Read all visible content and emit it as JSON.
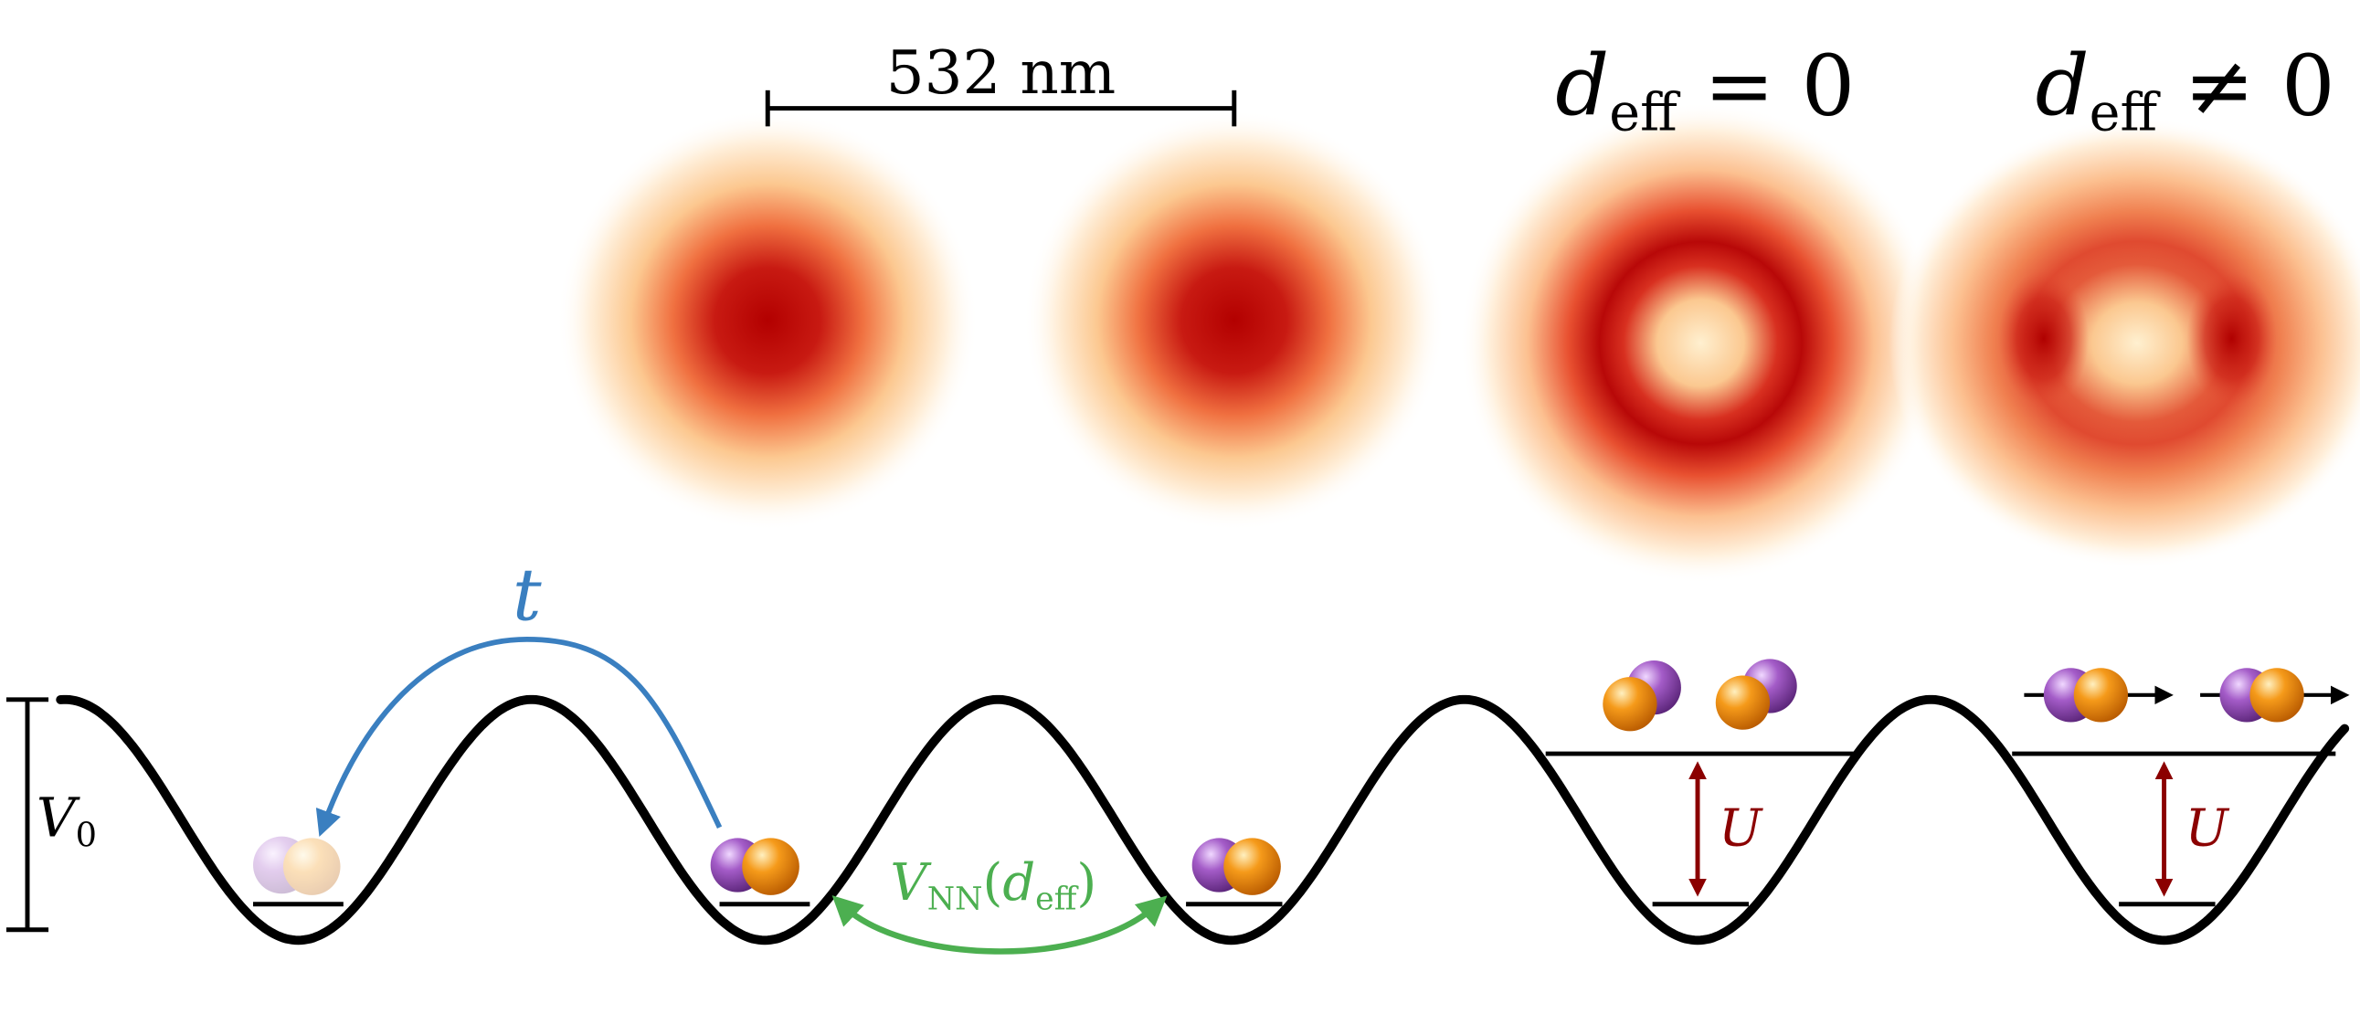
{
  "scale_bar": "532 nm",
  "panel_labels": [
    [
      {
        "text": "d",
        "italic": true
      },
      {
        "text": "eff",
        "sub": true
      },
      {
        "text": " = 0"
      }
    ],
    [
      {
        "text": "d",
        "italic": true
      },
      {
        "text": "eff",
        "sub": true
      },
      {
        "text": " ≠ 0"
      }
    ]
  ],
  "hopping": [
    {
      "text": "t",
      "italic": true
    }
  ],
  "barrier": [
    {
      "text": "V",
      "italic": true
    },
    {
      "text": "0",
      "sub": true
    }
  ],
  "interaction": [
    {
      "text": "V",
      "italic": true
    },
    {
      "text": "NN",
      "sub": true
    },
    {
      "text": "(",
      "italic": false
    },
    {
      "text": "d",
      "italic": true
    },
    {
      "text": "eff",
      "sub": true
    },
    {
      "text": ")"
    }
  ],
  "onsite": [
    [
      {
        "text": "U",
        "italic": true
      }
    ],
    [
      {
        "text": "U",
        "italic": true
      }
    ]
  ]
}
